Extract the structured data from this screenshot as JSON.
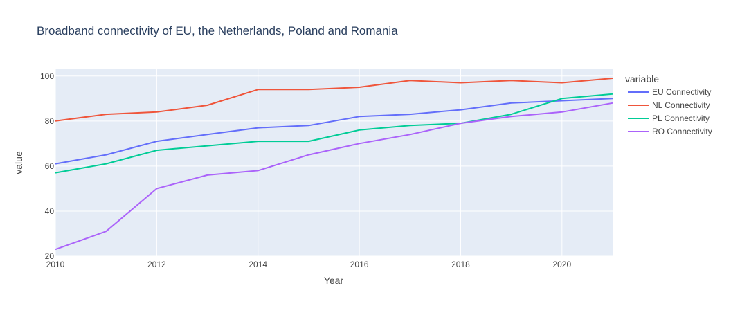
{
  "chart_data": {
    "type": "line",
    "title": "Broadband connectivity of EU, the Netherlands, Poland and Romania",
    "xlabel": "Year",
    "ylabel": "value",
    "xlim": [
      2010,
      2021
    ],
    "ylim": [
      20,
      103
    ],
    "x_ticks": [
      2010,
      2012,
      2014,
      2016,
      2018,
      2020
    ],
    "y_ticks": [
      20,
      40,
      60,
      80,
      100
    ],
    "grid": true,
    "legend_title": "variable",
    "legend_position": "right",
    "x": [
      2010,
      2011,
      2012,
      2013,
      2014,
      2015,
      2016,
      2017,
      2018,
      2019,
      2020,
      2021
    ],
    "series": [
      {
        "name": "EU Connectivity",
        "color": "#636efa",
        "values": [
          61,
          65,
          71,
          74,
          77,
          78,
          82,
          83,
          85,
          88,
          89,
          90
        ]
      },
      {
        "name": "NL Connectivity",
        "color": "#ef553b",
        "values": [
          80,
          83,
          84,
          87,
          94,
          94,
          95,
          98,
          97,
          98,
          97,
          99
        ]
      },
      {
        "name": "PL Connectivity",
        "color": "#00cc96",
        "values": [
          57,
          61,
          67,
          69,
          71,
          71,
          76,
          78,
          79,
          83,
          90,
          92
        ]
      },
      {
        "name": "RO Connectivity",
        "color": "#ab63fa",
        "values": [
          23,
          31,
          50,
          56,
          58,
          65,
          70,
          74,
          79,
          82,
          84,
          88
        ]
      }
    ],
    "colors": {
      "plot_bg": "#e5ecf6",
      "grid": "#ffffff",
      "text": "#444444",
      "title": "#2a3f5f"
    }
  }
}
